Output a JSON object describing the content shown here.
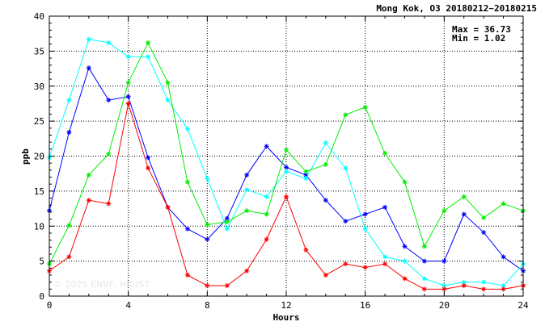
{
  "chart_data": {
    "type": "line",
    "title": "Mong Kok, O3 20180212~20180215",
    "xlabel": "Hours",
    "ylabel": "ppb",
    "xlim": [
      0,
      24
    ],
    "ylim": [
      0,
      40
    ],
    "xticks": [
      0,
      4,
      8,
      12,
      16,
      20,
      24
    ],
    "yticks": [
      0,
      5,
      10,
      15,
      20,
      25,
      30,
      35,
      40
    ],
    "grid": true,
    "legend": "none",
    "stats": {
      "max_label": "Max = 36.73",
      "min_label": "Min =  1.02"
    },
    "watermark": "© 2025 ENVF, HKUST",
    "x": [
      0,
      1,
      2,
      3,
      4,
      5,
      6,
      7,
      8,
      9,
      10,
      11,
      12,
      13,
      14,
      15,
      16,
      17,
      18,
      19,
      20,
      21,
      22,
      23,
      24
    ],
    "series": [
      {
        "color": "#0000ff",
        "values": [
          12.2,
          23.4,
          32.6,
          28.0,
          28.5,
          19.8,
          12.7,
          9.6,
          8.1,
          11.1,
          17.3,
          21.4,
          18.4,
          17.3,
          13.7,
          10.7,
          11.7,
          12.7,
          7.1,
          5.0,
          5.0,
          11.7,
          9.1,
          5.6,
          3.6
        ]
      },
      {
        "color": "#00ffff",
        "values": [
          19.8,
          28.0,
          36.7,
          36.2,
          34.2,
          34.2,
          28.0,
          23.9,
          16.8,
          9.6,
          15.2,
          14.2,
          17.8,
          16.8,
          21.9,
          18.3,
          9.6,
          5.6,
          5.0,
          2.5,
          1.5,
          2.0,
          2.0,
          1.5,
          4.6
        ]
      },
      {
        "color": "#00ee00",
        "values": [
          4.6,
          10.1,
          17.3,
          20.3,
          30.5,
          36.2,
          30.5,
          16.3,
          10.2,
          10.6,
          12.2,
          11.7,
          20.9,
          17.8,
          18.8,
          25.9,
          27.0,
          20.4,
          16.3,
          7.1,
          12.2,
          14.2,
          11.2,
          13.2,
          12.2
        ]
      },
      {
        "color": "#ff0000",
        "values": [
          3.6,
          5.6,
          13.7,
          13.2,
          27.5,
          18.3,
          12.7,
          3.0,
          1.5,
          1.5,
          3.6,
          8.1,
          14.2,
          6.6,
          3.0,
          4.6,
          4.1,
          4.6,
          2.5,
          1.0,
          1.0,
          1.5,
          1.0,
          1.0,
          1.5
        ]
      }
    ]
  }
}
